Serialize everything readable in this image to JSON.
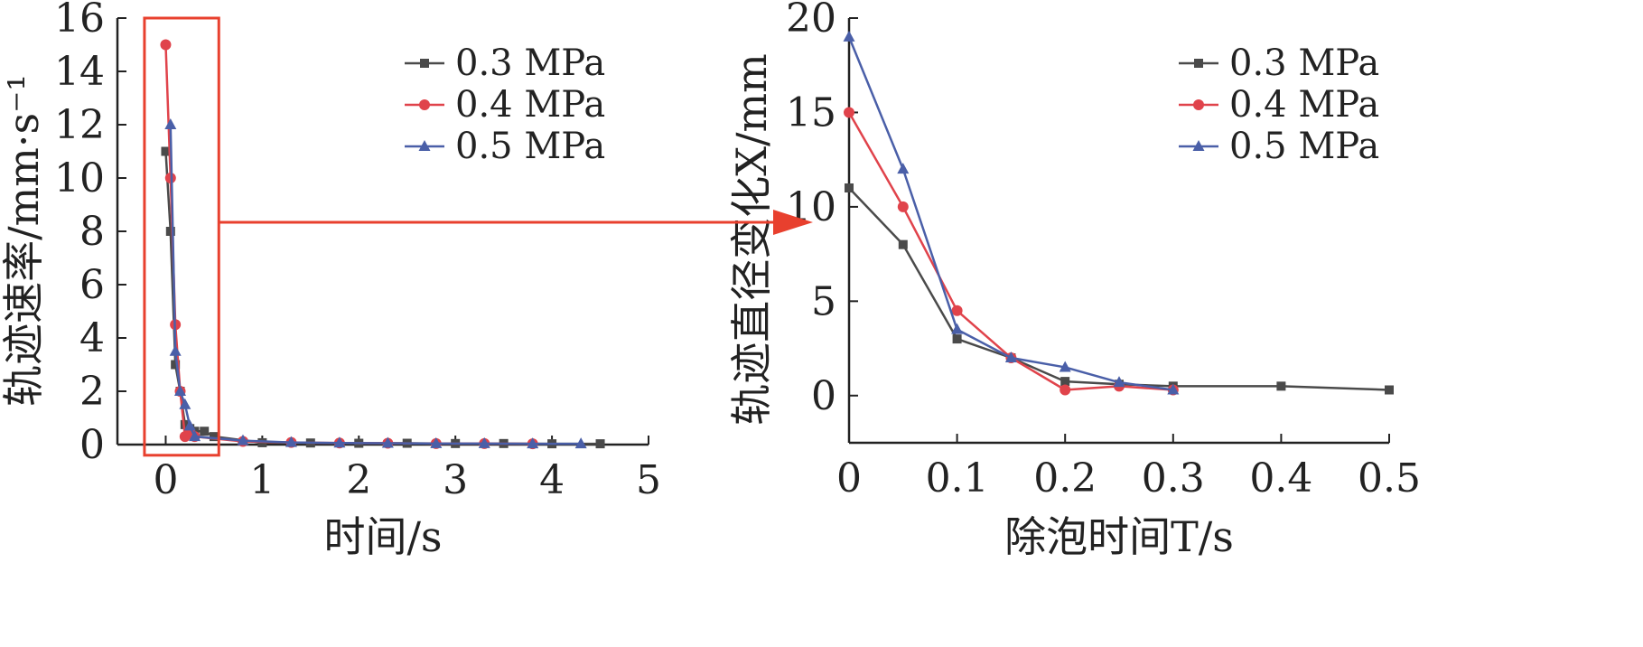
{
  "chart_data": [
    {
      "type": "line",
      "xlabel": "时间/s",
      "ylabel": "轨迹速率/mm·s⁻¹",
      "xlim": [
        -0.5,
        5
      ],
      "ylim": [
        0,
        16
      ],
      "xticks": [
        0,
        1,
        2,
        3,
        4,
        5
      ],
      "yticks": [
        0,
        2,
        4,
        6,
        8,
        10,
        12,
        14,
        16
      ],
      "xtick_labels": [
        "0",
        "1",
        "2",
        "3",
        "4",
        "5"
      ],
      "ytick_labels": [
        "0",
        "2",
        "4",
        "6",
        "8",
        "10",
        "12",
        "14",
        "16"
      ],
      "legend": "top-right",
      "grid": false,
      "highlight_box": {
        "x": [
          -0.22,
          0.55
        ],
        "y": [
          -0.4,
          16
        ]
      },
      "series": [
        {
          "name": "0.3 MPa",
          "color": "#4a4a4a",
          "marker": "square",
          "x": [
            0,
            0.05,
            0.1,
            0.15,
            0.2,
            0.25,
            0.3,
            0.4,
            0.5,
            1.0,
            1.5,
            2.0,
            2.5,
            3.0,
            3.5,
            4.0,
            4.5
          ],
          "y": [
            11,
            8,
            3,
            2,
            0.75,
            0.6,
            0.5,
            0.5,
            0.3,
            0.07,
            0.06,
            0.05,
            0.05,
            0.04,
            0.04,
            0.03,
            0.03
          ]
        },
        {
          "name": "0.4 MPa",
          "color": "#e0434b",
          "marker": "circle",
          "x": [
            0,
            0.05,
            0.1,
            0.15,
            0.2,
            0.25,
            0.3,
            0.8,
            1.3,
            1.8,
            2.3,
            2.8,
            3.3,
            3.8
          ],
          "y": [
            15,
            10,
            4.5,
            2,
            0.3,
            0.5,
            0.3,
            0.12,
            0.08,
            0.06,
            0.05,
            0.04,
            0.04,
            0.03
          ]
        },
        {
          "name": "0.5 MPa",
          "color": "#4a5fa8",
          "marker": "triangle",
          "x": [
            0.05,
            0.1,
            0.15,
            0.2,
            0.25,
            0.3,
            0.8,
            1.3,
            1.8,
            2.3,
            2.8,
            3.3,
            3.8,
            4.3
          ],
          "y": [
            12,
            3.5,
            2,
            1.5,
            0.7,
            0.3,
            0.15,
            0.08,
            0.06,
            0.05,
            0.04,
            0.04,
            0.03,
            0.03
          ]
        }
      ]
    },
    {
      "type": "line",
      "xlabel": "除泡时间T/s",
      "ylabel": "轨迹直径变化X/mm",
      "xlim": [
        0,
        0.5
      ],
      "ylim": [
        -2.5,
        20
      ],
      "xticks": [
        0,
        0.1,
        0.2,
        0.3,
        0.4,
        0.5
      ],
      "yticks": [
        0,
        5,
        10,
        15,
        20
      ],
      "xtick_labels": [
        "0",
        "0.1",
        "0.2",
        "0.3",
        "0.4",
        "0.5"
      ],
      "ytick_labels": [
        "0",
        "5",
        "10",
        "15",
        "20"
      ],
      "legend": "top-right",
      "grid": false,
      "series": [
        {
          "name": "0.3 MPa",
          "color": "#4a4a4a",
          "marker": "square",
          "x": [
            0,
            0.05,
            0.1,
            0.15,
            0.2,
            0.25,
            0.3,
            0.4,
            0.5
          ],
          "y": [
            11,
            8,
            3,
            2,
            0.75,
            0.6,
            0.5,
            0.5,
            0.3
          ]
        },
        {
          "name": "0.4 MPa",
          "color": "#e0434b",
          "marker": "circle",
          "x": [
            0,
            0.05,
            0.1,
            0.15,
            0.2,
            0.25,
            0.3
          ],
          "y": [
            15,
            10,
            4.5,
            2,
            0.3,
            0.5,
            0.3
          ]
        },
        {
          "name": "0.5 MPa",
          "color": "#4a5fa8",
          "marker": "triangle",
          "x": [
            0,
            0.05,
            0.1,
            0.15,
            0.2,
            0.25,
            0.3
          ],
          "y": [
            19,
            12,
            3.5,
            2,
            1.5,
            0.7,
            0.3
          ]
        }
      ]
    }
  ],
  "arrow_color": "#e8402e"
}
